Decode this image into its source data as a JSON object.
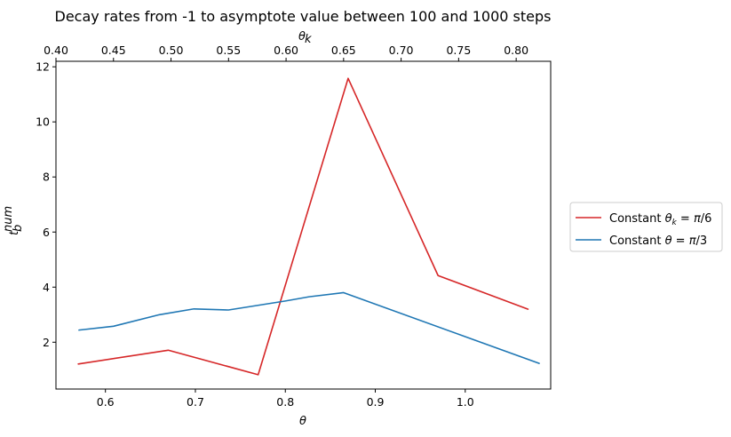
{
  "chart_data": {
    "type": "line",
    "title": "Decay rates from -1 to asymptote value between 100 and 1000 steps",
    "xlabel": "θ",
    "x2label": "θ_k",
    "ylabel": "t_b^num",
    "xlim": [
      0.545,
      1.095
    ],
    "x2lim": [
      0.4,
      0.83
    ],
    "ylim": [
      0.3,
      12.2
    ],
    "x_ticks": [
      "0.6",
      "0.7",
      "0.8",
      "0.9",
      "1.0"
    ],
    "x_tick_values": [
      0.6,
      0.7,
      0.8,
      0.9,
      1.0
    ],
    "x2_ticks": [
      "0.40",
      "0.45",
      "0.50",
      "0.55",
      "0.60",
      "0.65",
      "0.70",
      "0.75",
      "0.80"
    ],
    "x2_tick_values": [
      0.4,
      0.45,
      0.5,
      0.55,
      0.6,
      0.65,
      0.7,
      0.75,
      0.8
    ],
    "y_ticks": [
      "2",
      "4",
      "6",
      "8",
      "10",
      "12"
    ],
    "y_tick_values": [
      2,
      4,
      6,
      8,
      10,
      12
    ],
    "grid": false,
    "legend_position": "outside-right",
    "series": [
      {
        "name": "Constant θ_k = π/6",
        "axis": "bottom",
        "color": "#d62728",
        "x": [
          0.5698,
          0.6698,
          0.7698,
          0.8698,
          0.9698,
          1.0698
        ],
        "y": [
          1.21,
          1.71,
          0.82,
          11.58,
          4.42,
          3.2
        ]
      },
      {
        "name": "Constant θ = π/3",
        "axis": "top",
        "color": "#1f77b4",
        "x": [
          0.42,
          0.45,
          0.49,
          0.52,
          0.55,
          0.6,
          0.62,
          0.65,
          0.82
        ],
        "y": [
          2.44,
          2.58,
          3.0,
          3.21,
          3.17,
          3.5,
          3.65,
          3.8,
          1.23
        ]
      }
    ]
  }
}
